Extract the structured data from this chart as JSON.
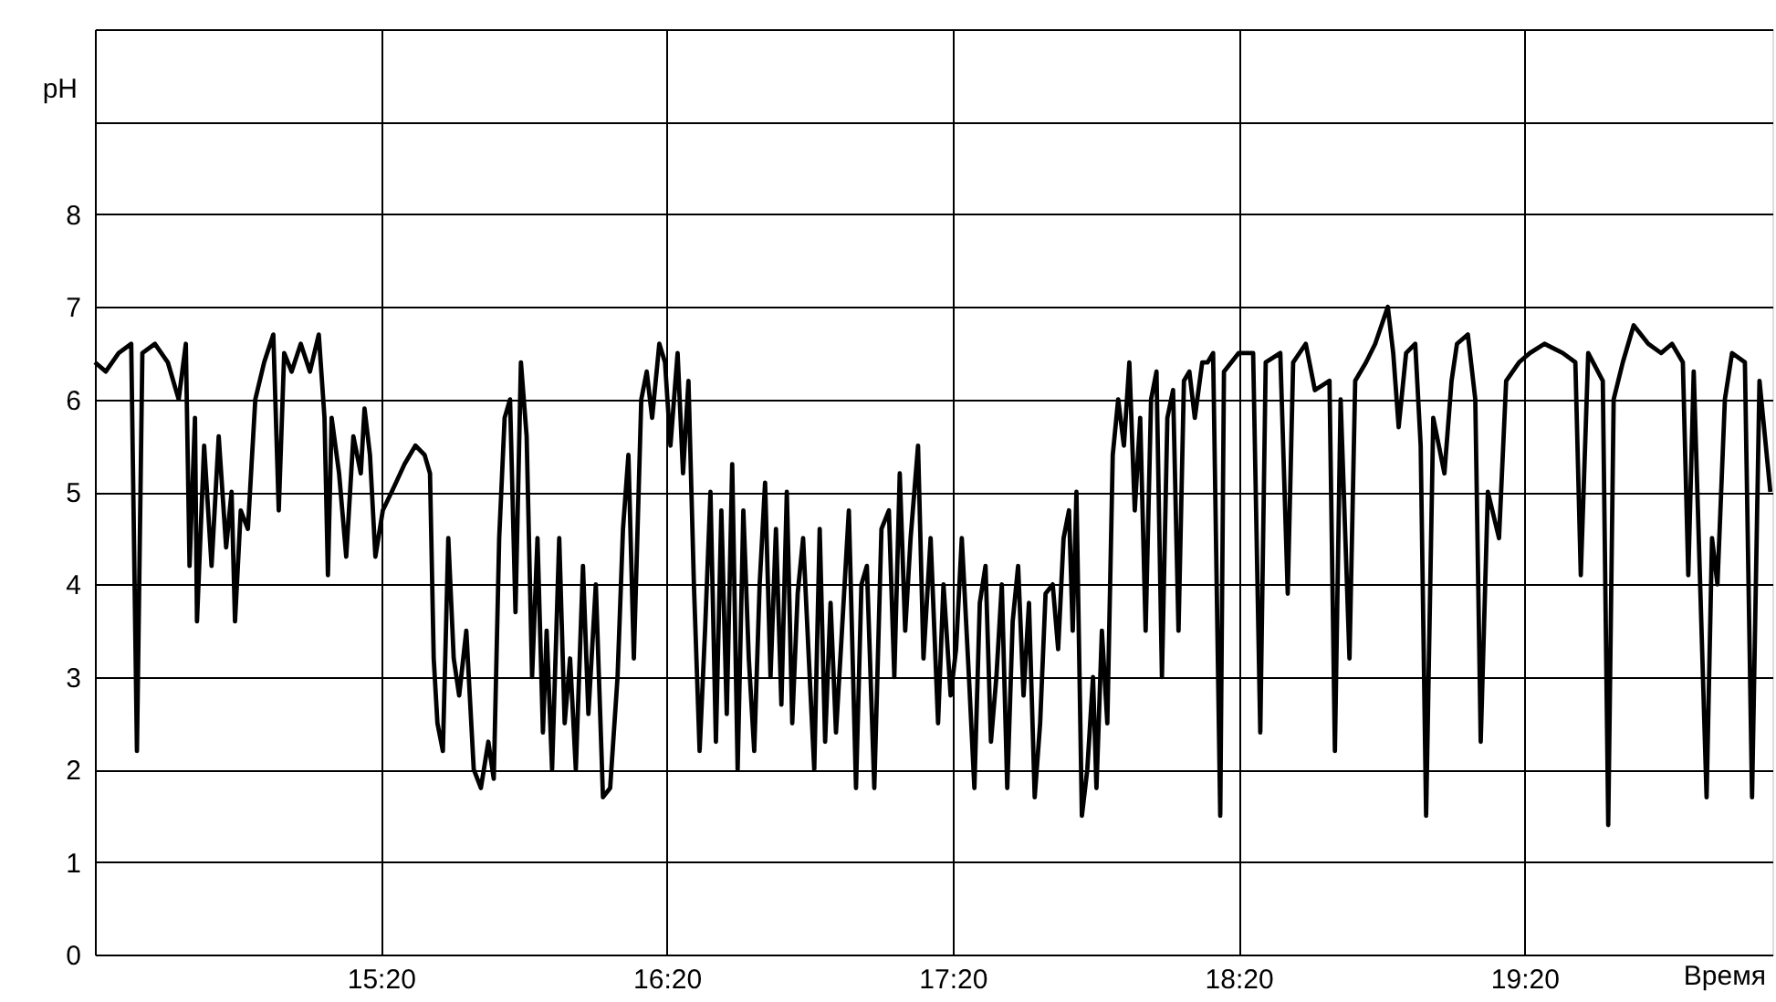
{
  "chart_data": {
    "type": "line",
    "xlabel": "Время",
    "ylabel": "pH",
    "xlim": [
      14.333,
      20.2
    ],
    "ylim": [
      0,
      10
    ],
    "xticks": [
      {
        "value": 15.333,
        "label": "15:20"
      },
      {
        "value": 16.333,
        "label": "16:20"
      },
      {
        "value": 17.333,
        "label": "17:20"
      },
      {
        "value": 18.333,
        "label": "18:20"
      },
      {
        "value": 19.333,
        "label": "19:20"
      }
    ],
    "yticks": [
      0,
      1,
      2,
      3,
      4,
      5,
      6,
      7,
      8,
      {
        "value": 9,
        "label": null
      },
      {
        "value": 10,
        "label": null
      }
    ],
    "grid": true,
    "marker": "none",
    "line_style": "solid",
    "series": [
      {
        "color": "#000000",
        "x": [
          14.333,
          14.371,
          14.416,
          14.46,
          14.48,
          14.499,
          14.543,
          14.588,
          14.626,
          14.651,
          14.664,
          14.683,
          14.69,
          14.715,
          14.741,
          14.766,
          14.792,
          14.811,
          14.823,
          14.843,
          14.868,
          14.894,
          14.925,
          14.957,
          14.976,
          14.995,
          15.021,
          15.053,
          15.085,
          15.116,
          15.136,
          15.148,
          15.161,
          15.187,
          15.212,
          15.237,
          15.263,
          15.276,
          15.295,
          15.314,
          15.34,
          15.371,
          15.416,
          15.454,
          15.486,
          15.505,
          15.518,
          15.531,
          15.55,
          15.569,
          15.588,
          15.607,
          15.632,
          15.658,
          15.683,
          15.709,
          15.728,
          15.747,
          15.766,
          15.785,
          15.804,
          15.823,
          15.843,
          15.862,
          15.881,
          15.9,
          15.913,
          15.932,
          15.957,
          15.976,
          15.995,
          16.015,
          16.04,
          16.059,
          16.085,
          16.11,
          16.135,
          16.161,
          16.18,
          16.199,
          16.218,
          16.244,
          16.263,
          16.282,
          16.307,
          16.327,
          16.346,
          16.371,
          16.39,
          16.409,
          16.428,
          16.448,
          16.467,
          16.486,
          16.505,
          16.524,
          16.543,
          16.562,
          16.581,
          16.601,
          16.62,
          16.639,
          16.658,
          16.677,
          16.696,
          16.715,
          16.734,
          16.753,
          16.772,
          16.791,
          16.81,
          16.83,
          16.849,
          16.868,
          16.887,
          16.906,
          16.925,
          16.944,
          16.97,
          16.995,
          17.014,
          17.033,
          17.059,
          17.084,
          17.11,
          17.129,
          17.148,
          17.167,
          17.186,
          17.212,
          17.231,
          17.256,
          17.282,
          17.301,
          17.326,
          17.345,
          17.365,
          17.39,
          17.409,
          17.428,
          17.448,
          17.467,
          17.486,
          17.505,
          17.524,
          17.543,
          17.562,
          17.581,
          17.6,
          17.62,
          17.639,
          17.658,
          17.683,
          17.702,
          17.721,
          17.74,
          17.753,
          17.766,
          17.785,
          17.804,
          17.824,
          17.836,
          17.855,
          17.874,
          17.893,
          17.912,
          17.932,
          17.951,
          17.97,
          17.989,
          18.008,
          18.027,
          18.046,
          18.065,
          18.084,
          18.104,
          18.123,
          18.142,
          18.161,
          18.18,
          18.206,
          18.225,
          18.244,
          18.269,
          18.282,
          18.333,
          18.384,
          18.409,
          18.428,
          18.479,
          18.505,
          18.524,
          18.568,
          18.6,
          18.651,
          18.67,
          18.69,
          18.721,
          18.741,
          18.779,
          18.811,
          18.855,
          18.874,
          18.893,
          18.919,
          18.951,
          18.97,
          18.989,
          19.014,
          19.053,
          19.078,
          19.097,
          19.135,
          19.161,
          19.18,
          19.205,
          19.244,
          19.269,
          19.314,
          19.352,
          19.403,
          19.467,
          19.511,
          19.53,
          19.556,
          19.607,
          19.626,
          19.645,
          19.677,
          19.715,
          19.766,
          19.811,
          19.849,
          19.887,
          19.906,
          19.925,
          19.97,
          19.989,
          20.008,
          20.034,
          20.059,
          20.104,
          20.129,
          20.155,
          20.193
        ],
        "values": [
          6.4,
          6.3,
          6.5,
          6.6,
          2.2,
          6.5,
          6.6,
          6.4,
          6.0,
          6.6,
          4.2,
          5.8,
          3.6,
          5.5,
          4.2,
          5.6,
          4.4,
          5.0,
          3.6,
          4.8,
          4.6,
          6.0,
          6.4,
          6.7,
          4.8,
          6.5,
          6.3,
          6.6,
          6.3,
          6.7,
          5.8,
          4.1,
          5.8,
          5.2,
          4.3,
          5.6,
          5.2,
          5.9,
          5.4,
          4.3,
          4.8,
          5.0,
          5.3,
          5.5,
          5.4,
          5.2,
          3.2,
          2.5,
          2.2,
          4.5,
          3.2,
          2.8,
          3.5,
          2.0,
          1.8,
          2.3,
          1.9,
          4.5,
          5.8,
          6.0,
          3.7,
          6.4,
          5.6,
          3.0,
          4.5,
          2.4,
          3.5,
          2.0,
          4.5,
          2.5,
          3.2,
          2.0,
          4.2,
          2.6,
          4.0,
          1.7,
          1.8,
          3.0,
          4.6,
          5.4,
          3.2,
          6.0,
          6.3,
          5.8,
          6.6,
          6.4,
          5.5,
          6.5,
          5.2,
          6.2,
          4.0,
          2.2,
          3.5,
          5.0,
          2.3,
          4.8,
          2.6,
          5.3,
          2.0,
          4.8,
          3.2,
          2.2,
          4.0,
          5.1,
          3.0,
          4.6,
          2.7,
          5.0,
          2.5,
          3.9,
          4.5,
          3.2,
          2.0,
          4.6,
          2.3,
          3.8,
          2.4,
          3.4,
          4.8,
          1.8,
          4.0,
          4.2,
          1.8,
          4.6,
          4.8,
          3.0,
          5.2,
          3.5,
          4.5,
          5.5,
          3.2,
          4.5,
          2.5,
          4.0,
          2.8,
          3.3,
          4.5,
          3.0,
          1.8,
          3.8,
          4.2,
          2.3,
          3.0,
          4.0,
          1.8,
          3.6,
          4.2,
          2.8,
          3.8,
          1.7,
          2.5,
          3.9,
          4.0,
          3.3,
          4.5,
          4.8,
          3.5,
          5.0,
          1.5,
          2.0,
          3.0,
          1.8,
          3.5,
          2.5,
          5.4,
          6.0,
          5.5,
          6.4,
          4.8,
          5.8,
          3.5,
          6.0,
          6.3,
          3.0,
          5.8,
          6.1,
          3.5,
          6.2,
          6.3,
          5.8,
          6.4,
          6.4,
          6.5,
          1.5,
          6.3,
          6.5,
          6.5,
          2.4,
          6.4,
          6.5,
          3.9,
          6.4,
          6.6,
          6.1,
          6.2,
          2.2,
          6.0,
          3.2,
          6.2,
          6.4,
          6.6,
          7.0,
          6.5,
          5.7,
          6.5,
          6.6,
          5.5,
          1.5,
          5.8,
          5.2,
          6.2,
          6.6,
          6.7,
          6.0,
          2.3,
          5.0,
          4.5,
          6.2,
          6.4,
          6.5,
          6.6,
          6.5,
          6.4,
          4.1,
          6.5,
          6.2,
          1.4,
          6.0,
          6.4,
          6.8,
          6.6,
          6.5,
          6.6,
          6.4,
          4.1,
          6.3,
          1.7,
          4.5,
          4.0,
          6.0,
          6.5,
          6.4,
          1.7,
          6.2,
          5.0
        ]
      }
    ]
  }
}
